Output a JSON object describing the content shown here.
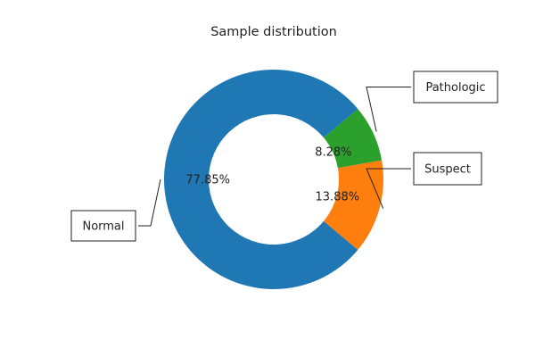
{
  "chart_data": {
    "type": "pie",
    "title": "Sample distribution",
    "slices": [
      {
        "label": "Normal",
        "value": 77.85,
        "pct_label": "77.85%",
        "color": "#1f77b4"
      },
      {
        "label": "Suspect",
        "value": 13.88,
        "pct_label": "13.88%",
        "color": "#ff7f0e"
      },
      {
        "label": "Pathologic",
        "value": 8.28,
        "pct_label": "8.28%",
        "color": "#2ca02c"
      }
    ]
  }
}
